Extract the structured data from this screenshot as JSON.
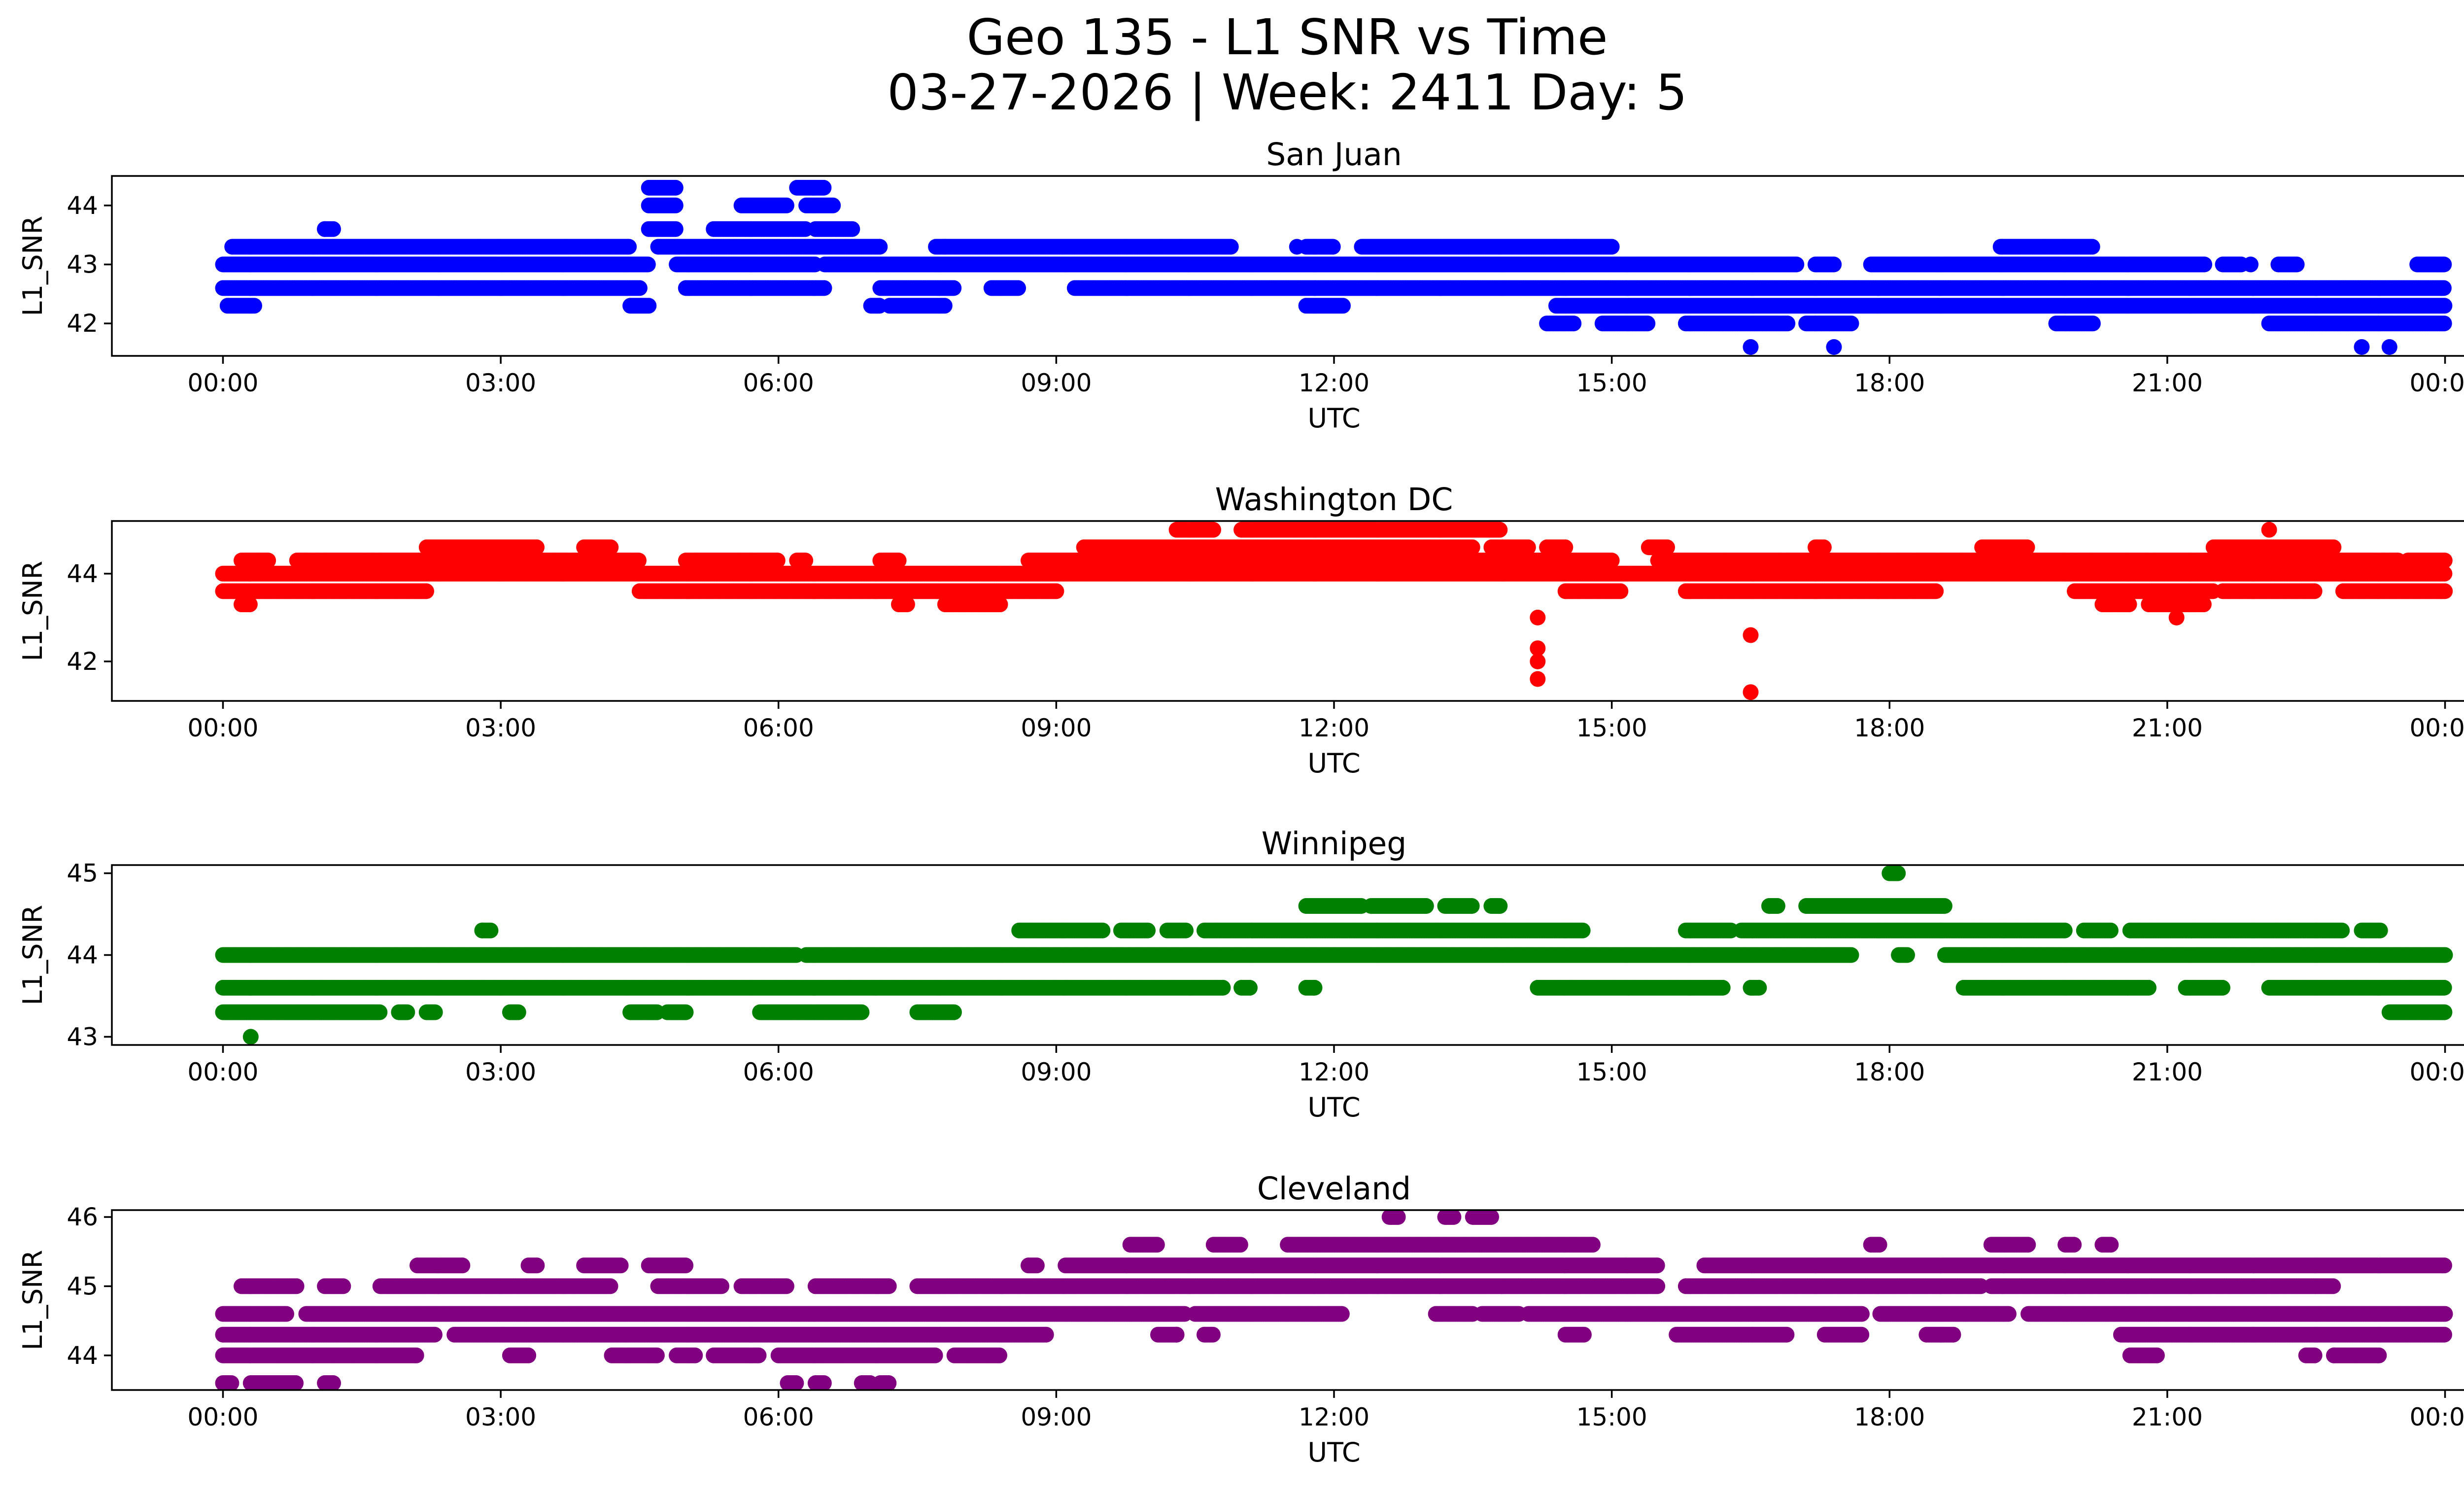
{
  "figure": {
    "title_line1": "Geo 135 - L1 SNR vs Time",
    "title_line2": "03-27-2026 | Week: 2411 Day: 5"
  },
  "chart_data": [
    {
      "type": "scatter",
      "title": "San Juan",
      "xlabel": "UTC",
      "ylabel": "L1_SNR",
      "color": "#0000ff",
      "xticks": [
        "00:00",
        "03:00",
        "06:00",
        "09:00",
        "12:00",
        "15:00",
        "18:00",
        "21:00",
        "00:00"
      ],
      "yticks": [
        42,
        43,
        44
      ],
      "xlim": [
        -1.2,
        25.2
      ],
      "ylim": [
        41.45,
        44.5
      ],
      "bands": [
        {
          "y": 42.0,
          "ranges": [
            [
              14.3,
              14.6
            ],
            [
              14.9,
              15.4
            ],
            [
              15.8,
              16.9
            ],
            [
              17.1,
              17.6
            ],
            [
              19.8,
              20.2
            ],
            [
              22.1,
              24.0
            ]
          ]
        },
        {
          "y": 42.3,
          "ranges": [
            [
              0.05,
              0.35
            ],
            [
              4.4,
              4.6
            ],
            [
              7.0,
              7.1
            ],
            [
              7.2,
              7.8
            ],
            [
              11.7,
              12.1
            ],
            [
              14.4,
              24.0
            ]
          ]
        },
        {
          "y": 42.6,
          "ranges": [
            [
              0.0,
              4.5
            ],
            [
              5.0,
              6.5
            ],
            [
              7.1,
              7.9
            ],
            [
              8.3,
              8.6
            ],
            [
              9.2,
              11.8
            ],
            [
              11.8,
              24.0
            ]
          ]
        },
        {
          "y": 43.0,
          "ranges": [
            [
              0.0,
              4.6
            ],
            [
              4.9,
              6.4
            ],
            [
              6.5,
              17.0
            ],
            [
              17.2,
              17.4
            ],
            [
              17.8,
              21.4
            ],
            [
              21.6,
              21.8
            ],
            [
              22.2,
              22.4
            ],
            [
              23.7,
              24.0
            ]
          ]
        },
        {
          "y": 43.3,
          "ranges": [
            [
              0.1,
              4.4
            ],
            [
              4.7,
              7.1
            ],
            [
              7.7,
              10.9
            ],
            [
              11.7,
              12.0
            ],
            [
              12.3,
              15.0
            ],
            [
              19.2,
              20.2
            ]
          ]
        },
        {
          "y": 43.6,
          "ranges": [
            [
              1.1,
              1.2
            ],
            [
              4.6,
              4.9
            ],
            [
              5.3,
              6.3
            ],
            [
              6.4,
              6.8
            ]
          ]
        },
        {
          "y": 44.0,
          "ranges": [
            [
              4.6,
              4.9
            ],
            [
              5.6,
              6.1
            ],
            [
              6.3,
              6.6
            ]
          ]
        },
        {
          "y": 44.3,
          "ranges": [
            [
              4.6,
              4.9
            ],
            [
              6.2,
              6.5
            ]
          ]
        }
      ],
      "isolated_points": [
        [
          16.5,
          41.6
        ],
        [
          17.4,
          41.6
        ],
        [
          23.1,
          41.6
        ],
        [
          23.4,
          41.6
        ],
        [
          1.1,
          43.6
        ],
        [
          7.8,
          43.3
        ],
        [
          11.6,
          43.3
        ],
        [
          21.9,
          43.0
        ]
      ]
    },
    {
      "type": "scatter",
      "title": "Washington DC",
      "xlabel": "UTC",
      "ylabel": "L1_SNR",
      "color": "#ff0000",
      "xticks": [
        "00:00",
        "03:00",
        "06:00",
        "09:00",
        "12:00",
        "15:00",
        "18:00",
        "21:00",
        "00:00"
      ],
      "yticks": [
        42,
        44
      ],
      "xlim": [
        -1.2,
        25.2
      ],
      "ylim": [
        41.1,
        45.2
      ],
      "bands": [
        {
          "y": 43.3,
          "ranges": [
            [
              0.2,
              0.3
            ],
            [
              7.3,
              7.4
            ],
            [
              7.8,
              8.4
            ],
            [
              20.3,
              20.6
            ],
            [
              20.8,
              21.4
            ]
          ]
        },
        {
          "y": 43.6,
          "ranges": [
            [
              0.0,
              2.2
            ],
            [
              4.5,
              9.0
            ],
            [
              14.5,
              15.1
            ],
            [
              15.8,
              18.5
            ],
            [
              20.0,
              21.5
            ],
            [
              21.6,
              22.6
            ],
            [
              22.9,
              24.0
            ]
          ]
        },
        {
          "y": 44.0,
          "ranges": [
            [
              0.0,
              24.0
            ]
          ]
        },
        {
          "y": 44.3,
          "ranges": [
            [
              0.2,
              0.5
            ],
            [
              0.8,
              4.5
            ],
            [
              5.0,
              6.0
            ],
            [
              6.2,
              6.3
            ],
            [
              7.1,
              7.3
            ],
            [
              8.7,
              15.0
            ],
            [
              15.5,
              23.5
            ],
            [
              23.6,
              24.0
            ]
          ]
        },
        {
          "y": 44.6,
          "ranges": [
            [
              2.2,
              3.4
            ],
            [
              3.9,
              4.2
            ],
            [
              9.3,
              13.5
            ],
            [
              13.7,
              14.1
            ],
            [
              14.3,
              14.5
            ],
            [
              15.4,
              15.6
            ],
            [
              17.2,
              17.3
            ],
            [
              19.0,
              19.5
            ],
            [
              21.5,
              22.8
            ]
          ]
        },
        {
          "y": 45.0,
          "ranges": [
            [
              10.3,
              10.7
            ],
            [
              11.0,
              13.8
            ]
          ]
        }
      ],
      "isolated_points": [
        [
          14.2,
          43.0
        ],
        [
          14.2,
          42.3
        ],
        [
          14.2,
          42.0
        ],
        [
          14.2,
          41.6
        ],
        [
          16.5,
          42.6
        ],
        [
          16.5,
          41.3
        ],
        [
          22.1,
          45.0
        ],
        [
          21.1,
          43.0
        ]
      ]
    },
    {
      "type": "scatter",
      "title": "Winnipeg",
      "xlabel": "UTC",
      "ylabel": "L1_SNR",
      "color": "#008000",
      "xticks": [
        "00:00",
        "03:00",
        "06:00",
        "09:00",
        "12:00",
        "15:00",
        "18:00",
        "21:00",
        "00:00"
      ],
      "yticks": [
        43,
        44,
        45
      ],
      "xlim": [
        -1.2,
        25.2
      ],
      "ylim": [
        42.9,
        45.1
      ],
      "bands": [
        {
          "y": 43.3,
          "ranges": [
            [
              0.0,
              1.7
            ],
            [
              1.9,
              2.0
            ],
            [
              2.2,
              2.3
            ],
            [
              3.1,
              3.2
            ],
            [
              4.4,
              4.7
            ],
            [
              4.8,
              5.0
            ],
            [
              5.8,
              6.9
            ],
            [
              7.5,
              7.9
            ],
            [
              23.4,
              24.0
            ]
          ]
        },
        {
          "y": 43.6,
          "ranges": [
            [
              0.0,
              10.8
            ],
            [
              11.0,
              11.1
            ],
            [
              11.7,
              11.8
            ],
            [
              14.2,
              16.2
            ],
            [
              16.5,
              16.6
            ],
            [
              18.8,
              20.8
            ],
            [
              21.2,
              21.6
            ],
            [
              22.1,
              24.0
            ]
          ]
        },
        {
          "y": 44.0,
          "ranges": [
            [
              0.0,
              6.2
            ],
            [
              6.3,
              17.6
            ],
            [
              18.1,
              18.2
            ],
            [
              18.6,
              24.0
            ]
          ]
        },
        {
          "y": 44.3,
          "ranges": [
            [
              2.8,
              2.9
            ],
            [
              8.6,
              9.5
            ],
            [
              9.7,
              10.0
            ],
            [
              10.2,
              10.4
            ],
            [
              10.6,
              14.7
            ],
            [
              15.8,
              16.3
            ],
            [
              16.4,
              19.9
            ],
            [
              20.1,
              20.4
            ],
            [
              20.6,
              22.9
            ],
            [
              23.1,
              23.3
            ]
          ]
        },
        {
          "y": 44.6,
          "ranges": [
            [
              11.7,
              12.3
            ],
            [
              12.4,
              13.0
            ],
            [
              13.2,
              13.5
            ],
            [
              13.7,
              13.8
            ],
            [
              16.7,
              16.8
            ],
            [
              17.1,
              18.6
            ]
          ]
        },
        {
          "y": 45.0,
          "ranges": [
            [
              18.0,
              18.1
            ]
          ]
        }
      ],
      "isolated_points": [
        [
          0.3,
          43.0
        ],
        [
          2.8,
          44.3
        ]
      ]
    },
    {
      "type": "scatter",
      "title": "Cleveland",
      "xlabel": "UTC",
      "ylabel": "L1_SNR",
      "color": "#800080",
      "xticks": [
        "00:00",
        "03:00",
        "06:00",
        "09:00",
        "12:00",
        "15:00",
        "18:00",
        "21:00",
        "00:00"
      ],
      "yticks": [
        44,
        45,
        46
      ],
      "xlim": [
        -1.2,
        25.2
      ],
      "ylim": [
        43.5,
        46.1
      ],
      "bands": [
        {
          "y": 43.6,
          "ranges": [
            [
              0.0,
              0.1
            ],
            [
              0.3,
              0.8
            ],
            [
              1.1,
              1.2
            ],
            [
              6.1,
              6.2
            ],
            [
              6.4,
              6.5
            ],
            [
              6.9,
              7.0
            ],
            [
              7.1,
              7.2
            ]
          ]
        },
        {
          "y": 44.0,
          "ranges": [
            [
              0.0,
              2.1
            ],
            [
              3.1,
              3.3
            ],
            [
              4.2,
              4.7
            ],
            [
              4.9,
              5.1
            ],
            [
              5.3,
              5.8
            ],
            [
              6.0,
              7.7
            ],
            [
              7.9,
              8.4
            ],
            [
              20.6,
              20.9
            ],
            [
              22.5,
              22.6
            ],
            [
              22.8,
              23.3
            ]
          ]
        },
        {
          "y": 44.3,
          "ranges": [
            [
              0.0,
              2.3
            ],
            [
              2.5,
              8.9
            ],
            [
              10.1,
              10.3
            ],
            [
              10.6,
              10.7
            ],
            [
              14.5,
              14.7
            ],
            [
              15.7,
              16.9
            ],
            [
              17.3,
              17.7
            ],
            [
              18.4,
              18.7
            ],
            [
              20.5,
              24.0
            ]
          ]
        },
        {
          "y": 44.6,
          "ranges": [
            [
              0.0,
              0.7
            ],
            [
              0.9,
              10.4
            ],
            [
              10.5,
              12.1
            ],
            [
              13.1,
              13.5
            ],
            [
              13.6,
              14.0
            ],
            [
              14.1,
              17.7
            ],
            [
              17.9,
              19.3
            ],
            [
              19.5,
              24.0
            ]
          ]
        },
        {
          "y": 45.0,
          "ranges": [
            [
              0.2,
              0.8
            ],
            [
              1.1,
              1.3
            ],
            [
              1.7,
              4.2
            ],
            [
              4.7,
              5.4
            ],
            [
              5.6,
              6.1
            ],
            [
              6.4,
              7.2
            ],
            [
              7.5,
              15.5
            ],
            [
              15.8,
              19.0
            ],
            [
              19.1,
              22.8
            ]
          ]
        },
        {
          "y": 45.3,
          "ranges": [
            [
              2.1,
              2.6
            ],
            [
              3.3,
              3.4
            ],
            [
              3.9,
              4.3
            ],
            [
              4.6,
              5.0
            ],
            [
              8.7,
              8.8
            ],
            [
              9.1,
              15.5
            ],
            [
              16.0,
              24.0
            ]
          ]
        },
        {
          "y": 45.6,
          "ranges": [
            [
              9.8,
              10.1
            ],
            [
              10.7,
              11.0
            ],
            [
              11.5,
              14.8
            ],
            [
              17.8,
              17.9
            ],
            [
              19.1,
              19.5
            ],
            [
              19.9,
              20.0
            ],
            [
              20.3,
              20.4
            ]
          ]
        },
        {
          "y": 46.0,
          "ranges": [
            [
              12.6,
              12.7
            ],
            [
              13.2,
              13.3
            ],
            [
              13.5,
              13.7
            ]
          ]
        }
      ],
      "isolated_points": [
        [
          0.05,
          43.6
        ],
        [
          10.3,
          44.3
        ],
        [
          22.8,
          44.0
        ]
      ]
    }
  ]
}
